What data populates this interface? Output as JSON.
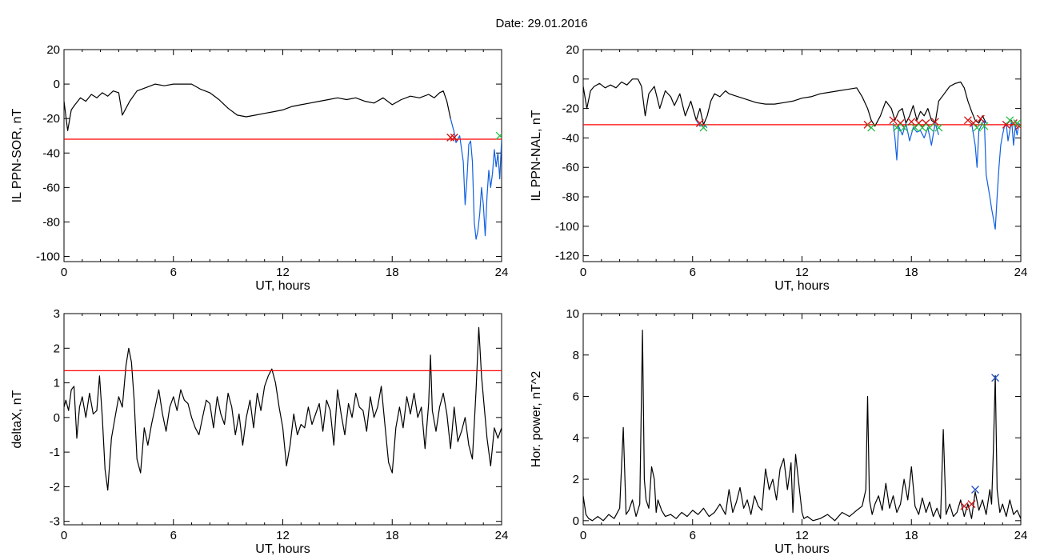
{
  "title": "Date:  29.01.2016",
  "colors": {
    "series": "#000000",
    "threshold": "#ff0000",
    "highlight": "#1060e0",
    "marker_red": "#d01010",
    "marker_green": "#20c040",
    "marker_blue": "#2050c0"
  },
  "chart_data": [
    {
      "type": "line",
      "xlabel": "UT, hours",
      "ylabel": "IL PPN-SOR, nT",
      "xlim": [
        0,
        24
      ],
      "ylim": [
        -103,
        20
      ],
      "xticks": [
        "0",
        "6",
        "12",
        "18",
        "24"
      ],
      "yticks": [
        "20",
        "0",
        "-20",
        "-40",
        "-60",
        "-80",
        "-100"
      ],
      "threshold": -32,
      "series": [
        {
          "x": [
            0,
            0.2,
            0.4,
            0.6,
            0.9,
            1.2,
            1.5,
            1.8,
            2.1,
            2.4,
            2.7,
            3.0,
            3.2,
            3.4,
            3.6,
            4.0,
            4.5,
            5.0,
            5.5,
            6.0,
            6.5,
            7.0,
            7.5,
            8.0,
            8.5,
            9.0,
            9.5,
            10.0,
            10.5,
            11.0,
            11.5,
            12.0,
            12.5,
            13.0,
            13.5,
            14.0,
            14.5,
            15.0,
            15.5,
            16.0,
            16.5,
            17.0,
            17.5,
            18.0,
            18.5,
            19.0,
            19.5,
            20.0,
            20.3,
            20.6,
            20.8,
            21.0,
            21.2
          ],
          "values": [
            -10,
            -27,
            -15,
            -12,
            -8,
            -10,
            -6,
            -8,
            -5,
            -7,
            -4,
            -5,
            -18,
            -14,
            -10,
            -4,
            -2,
            0,
            -1,
            0,
            0,
            0,
            -3,
            -5,
            -9,
            -14,
            -18,
            -19,
            -18,
            -17,
            -16,
            -15,
            -13,
            -12,
            -11,
            -10,
            -9,
            -8,
            -9,
            -8,
            -10,
            -11,
            -8,
            -12,
            -9,
            -7,
            -8,
            -6,
            -8,
            -5,
            -4,
            -10,
            -20
          ]
        },
        {
          "x": [
            21.2,
            21.4,
            21.5,
            21.7,
            21.9,
            22.0,
            22.1,
            22.2,
            22.3,
            22.4,
            22.5,
            22.6,
            22.7,
            22.8,
            22.9,
            23.0,
            23.1,
            23.2,
            23.3,
            23.4,
            23.5,
            23.6,
            23.7,
            23.8,
            23.9,
            24.0
          ],
          "values": [
            -20,
            -28,
            -34,
            -30,
            -45,
            -70,
            -55,
            -35,
            -33,
            -45,
            -80,
            -90,
            -85,
            -75,
            -60,
            -70,
            -88,
            -65,
            -50,
            -60,
            -52,
            -38,
            -48,
            -40,
            -55,
            -32
          ]
        }
      ],
      "markers": {
        "red": {
          "x": [
            21.2,
            21.4
          ],
          "values": [
            -31,
            -31
          ]
        },
        "green": {
          "x": [
            23.9
          ],
          "values": [
            -30
          ]
        }
      }
    },
    {
      "type": "line",
      "xlabel": "UT, hours",
      "ylabel": "IL PPN-NAL, nT",
      "xlim": [
        0,
        24
      ],
      "ylim": [
        -124,
        20
      ],
      "xticks": [
        "0",
        "6",
        "12",
        "18",
        "24"
      ],
      "yticks": [
        "20",
        "0",
        "-20",
        "-40",
        "-60",
        "-80",
        "-100",
        "-120"
      ],
      "threshold": -31,
      "series": [
        {
          "x": [
            0,
            0.2,
            0.4,
            0.6,
            0.9,
            1.2,
            1.5,
            1.8,
            2.1,
            2.4,
            2.7,
            3.0,
            3.2,
            3.4,
            3.6,
            3.9,
            4.2,
            4.5,
            4.8,
            5.0,
            5.3,
            5.6,
            5.9,
            6.2,
            6.4,
            6.6,
            6.8,
            7.0,
            7.2,
            7.5,
            7.8,
            8.0,
            8.5,
            9.0,
            9.5,
            10.0,
            10.5,
            11.0,
            11.5,
            12.0,
            12.5,
            13.0,
            13.5,
            14.0,
            14.5,
            15.0,
            15.3,
            15.6,
            15.8,
            16.0,
            16.3,
            16.6,
            16.9,
            17.1,
            17.3,
            17.5,
            17.7,
            17.9,
            18.1,
            18.3,
            18.5,
            18.7,
            18.9,
            19.1,
            19.3,
            19.5,
            19.8,
            20.1,
            20.4,
            20.7,
            20.9,
            21.1,
            21.3,
            21.5,
            21.7,
            21.9,
            22.1
          ],
          "values": [
            -5,
            -20,
            -8,
            -5,
            -3,
            -6,
            -4,
            -6,
            -2,
            -4,
            0,
            0,
            -5,
            -25,
            -10,
            -5,
            -20,
            -8,
            -12,
            -18,
            -10,
            -25,
            -15,
            -28,
            -20,
            -31,
            -25,
            -15,
            -10,
            -12,
            -8,
            -10,
            -12,
            -14,
            -16,
            -17,
            -17,
            -16,
            -15,
            -13,
            -12,
            -10,
            -9,
            -8,
            -7,
            -6,
            -12,
            -20,
            -28,
            -32,
            -25,
            -15,
            -20,
            -28,
            -22,
            -20,
            -30,
            -25,
            -18,
            -28,
            -22,
            -25,
            -20,
            -28,
            -30,
            -15,
            -10,
            -5,
            -3,
            -2,
            -6,
            -15,
            -22,
            -28,
            -30,
            -25,
            -30
          ]
        },
        {
          "x": [
            6.2,
            6.4,
            6.6,
            6.8
          ],
          "values": [
            -28,
            -32,
            -31,
            -33
          ]
        },
        {
          "x": [
            17.0,
            17.1,
            17.2,
            17.3,
            17.5,
            17.7,
            17.9,
            18.1,
            18.3,
            18.5,
            18.7,
            18.9,
            19.1,
            19.3,
            19.5
          ],
          "values": [
            -30,
            -40,
            -55,
            -32,
            -38,
            -30,
            -42,
            -33,
            -36,
            -35,
            -40,
            -33,
            -45,
            -30,
            -38
          ]
        },
        {
          "x": [
            21.3,
            21.5,
            21.6,
            21.7,
            21.9,
            22.0,
            22.1,
            22.3,
            22.4,
            22.5,
            22.6,
            22.7,
            22.8,
            22.9,
            23.0,
            23.1,
            23.2,
            23.3,
            23.4,
            23.5,
            23.6,
            23.7,
            23.8,
            23.9,
            24.0
          ],
          "values": [
            -30,
            -45,
            -60,
            -35,
            -30,
            -28,
            -65,
            -80,
            -88,
            -95,
            -102,
            -80,
            -60,
            -45,
            -38,
            -32,
            -30,
            -42,
            -35,
            -28,
            -45,
            -32,
            -38,
            -30,
            -33
          ]
        }
      ],
      "markers": {
        "red": {
          "x": [
            6.4,
            15.6,
            17.0,
            17.4,
            18.0,
            18.4,
            18.8,
            19.3,
            21.1,
            21.4,
            21.8,
            23.2,
            23.6,
            23.9
          ],
          "values": [
            -30,
            -31,
            -28,
            -30,
            -29,
            -30,
            -30,
            -29,
            -28,
            -30,
            -27,
            -31,
            -30,
            -32
          ]
        },
        "green": {
          "x": [
            6.6,
            15.8,
            17.2,
            17.6,
            18.2,
            18.6,
            19.0,
            19.5,
            21.6,
            22.0,
            23.4,
            23.8
          ],
          "values": [
            -33,
            -33,
            -33,
            -33,
            -33,
            -33,
            -33,
            -33,
            -33,
            -32,
            -28,
            -30
          ]
        }
      }
    },
    {
      "type": "line",
      "xlabel": "UT, hours",
      "ylabel": "deltaX, nT",
      "xlim": [
        0,
        24
      ],
      "ylim": [
        -3.1,
        3
      ],
      "xticks": [
        "0",
        "6",
        "12",
        "18",
        "24"
      ],
      "yticks": [
        "3",
        "2",
        "1",
        "0",
        "-1",
        "-2",
        "-3"
      ],
      "threshold": 1.35,
      "series": [
        {
          "x": [
            0,
            0.1,
            0.25,
            0.4,
            0.55,
            0.7,
            0.85,
            1.0,
            1.2,
            1.4,
            1.6,
            1.8,
            1.95,
            2.1,
            2.25,
            2.4,
            2.6,
            2.8,
            3.0,
            3.2,
            3.4,
            3.55,
            3.7,
            3.85,
            4.0,
            4.2,
            4.4,
            4.6,
            4.8,
            5.0,
            5.2,
            5.4,
            5.6,
            5.8,
            6.0,
            6.2,
            6.4,
            6.6,
            6.8,
            7.0,
            7.2,
            7.4,
            7.6,
            7.8,
            8.0,
            8.2,
            8.4,
            8.6,
            8.8,
            9.0,
            9.2,
            9.4,
            9.6,
            9.8,
            10.0,
            10.2,
            10.4,
            10.6,
            10.8,
            11.0,
            11.2,
            11.4,
            11.6,
            11.8,
            12.0,
            12.2,
            12.4,
            12.6,
            12.8,
            13.0,
            13.2,
            13.4,
            13.6,
            13.8,
            14.0,
            14.2,
            14.4,
            14.6,
            14.8,
            15.0,
            15.2,
            15.4,
            15.6,
            15.8,
            16.0,
            16.2,
            16.4,
            16.6,
            16.8,
            17.0,
            17.2,
            17.4,
            17.6,
            17.8,
            18.0,
            18.2,
            18.4,
            18.6,
            18.8,
            19.0,
            19.2,
            19.4,
            19.6,
            19.8,
            20.0,
            20.1,
            20.2,
            20.4,
            20.6,
            20.8,
            21.0,
            21.2,
            21.4,
            21.6,
            21.8,
            22.0,
            22.2,
            22.4,
            22.6,
            22.75,
            22.9,
            23.05,
            23.2,
            23.4,
            23.6,
            23.8,
            24.0
          ],
          "values": [
            0.3,
            0.5,
            0.2,
            0.8,
            0.9,
            -0.6,
            0.3,
            0.6,
            0.0,
            0.7,
            0.1,
            0.2,
            1.2,
            0.0,
            -1.5,
            -2.1,
            -0.6,
            0.0,
            0.6,
            0.3,
            1.5,
            2.0,
            1.6,
            0.5,
            -1.2,
            -1.6,
            -0.3,
            -0.8,
            -0.2,
            0.3,
            0.8,
            0.1,
            -0.4,
            0.3,
            0.6,
            0.2,
            0.8,
            0.5,
            0.4,
            0.0,
            -0.3,
            -0.5,
            0.0,
            0.5,
            0.4,
            -0.3,
            0.6,
            0.1,
            -0.2,
            0.7,
            0.3,
            -0.5,
            0.1,
            -0.8,
            0.0,
            0.5,
            -0.3,
            0.7,
            0.2,
            0.9,
            1.2,
            1.4,
            1.0,
            0.3,
            -0.3,
            -1.4,
            -0.8,
            0.1,
            -0.5,
            -0.2,
            -0.3,
            0.3,
            -0.2,
            0.1,
            0.4,
            -0.4,
            0.5,
            0.2,
            -0.8,
            0.8,
            0.1,
            -0.5,
            0.4,
            0.0,
            0.7,
            0.3,
            0.2,
            -0.4,
            0.6,
            0.0,
            0.3,
            0.9,
            -0.2,
            -1.3,
            -1.6,
            -0.3,
            0.3,
            -0.3,
            0.6,
            0.1,
            0.7,
            0.0,
            0.3,
            -0.9,
            0.4,
            1.8,
            0.2,
            -0.4,
            0.3,
            0.7,
            0.1,
            -0.9,
            0.3,
            -0.7,
            -0.4,
            0.0,
            -0.8,
            -1.2,
            0.8,
            2.6,
            1.2,
            0.3,
            -0.6,
            -1.4,
            -0.3,
            -0.6,
            -0.3
          ]
        }
      ]
    },
    {
      "type": "line",
      "xlabel": "UT, hours",
      "ylabel": "Hor. power, nT^2",
      "xlim": [
        0,
        24
      ],
      "ylim": [
        -0.2,
        10
      ],
      "xticks": [
        "0",
        "6",
        "12",
        "18",
        "24"
      ],
      "yticks": [
        "10",
        "8",
        "6",
        "4",
        "2",
        "0"
      ],
      "series": [
        {
          "x": [
            0,
            0.15,
            0.3,
            0.5,
            0.8,
            1.1,
            1.4,
            1.7,
            2.0,
            2.2,
            2.35,
            2.5,
            2.7,
            2.9,
            3.1,
            3.25,
            3.35,
            3.45,
            3.6,
            3.75,
            3.9,
            4.0,
            4.1,
            4.3,
            4.5,
            4.8,
            5.1,
            5.4,
            5.7,
            6.0,
            6.3,
            6.6,
            6.9,
            7.2,
            7.5,
            7.8,
            8.0,
            8.2,
            8.4,
            8.6,
            8.8,
            9.0,
            9.2,
            9.4,
            9.6,
            9.8,
            10.0,
            10.2,
            10.4,
            10.6,
            10.8,
            11.0,
            11.2,
            11.4,
            11.5,
            11.65,
            11.8,
            12.0,
            12.1,
            12.3,
            12.6,
            13.0,
            13.4,
            13.8,
            14.2,
            14.6,
            15.0,
            15.3,
            15.5,
            15.6,
            15.7,
            15.85,
            16.0,
            16.2,
            16.4,
            16.6,
            16.8,
            17.0,
            17.2,
            17.4,
            17.6,
            17.8,
            18.0,
            18.2,
            18.4,
            18.6,
            18.8,
            19.0,
            19.2,
            19.4,
            19.6,
            19.75,
            19.9,
            20.1,
            20.3,
            20.5,
            20.7,
            20.9,
            21.1,
            21.3,
            21.5,
            21.7,
            21.9,
            22.1,
            22.3,
            22.4,
            22.5,
            22.6,
            22.7,
            22.85,
            23.0,
            23.2,
            23.4,
            23.6,
            23.8,
            24.0
          ],
          "values": [
            1.2,
            0.3,
            0.1,
            0.0,
            0.2,
            0.0,
            0.3,
            0.1,
            0.6,
            4.5,
            0.3,
            0.5,
            1.0,
            0.2,
            0.8,
            9.2,
            2.0,
            1.0,
            0.6,
            2.6,
            2.0,
            0.4,
            1.0,
            0.5,
            0.2,
            0.3,
            0.1,
            0.4,
            0.2,
            0.5,
            0.3,
            0.6,
            0.2,
            0.4,
            0.8,
            0.3,
            1.5,
            0.4,
            0.9,
            1.6,
            0.6,
            1.0,
            0.3,
            1.2,
            0.7,
            0.5,
            2.5,
            1.5,
            2.0,
            1.0,
            2.5,
            3.0,
            1.5,
            2.8,
            0.4,
            3.2,
            2.0,
            0.4,
            0.1,
            0.2,
            0.0,
            0.1,
            0.3,
            0.0,
            0.4,
            0.2,
            0.5,
            0.7,
            1.5,
            6.0,
            1.0,
            0.3,
            0.8,
            1.2,
            0.5,
            1.8,
            0.6,
            1.2,
            0.4,
            0.8,
            2.0,
            1.0,
            2.6,
            0.7,
            0.3,
            1.1,
            0.4,
            0.9,
            0.2,
            0.6,
            0.1,
            4.4,
            0.3,
            0.8,
            0.2,
            0.4,
            1.0,
            0.2,
            0.8,
            0.1,
            1.4,
            0.5,
            1.0,
            0.3,
            1.5,
            0.8,
            3.5,
            7.0,
            1.5,
            0.4,
            0.8,
            0.2,
            1.0,
            0.3,
            0.5,
            0.1
          ]
        }
      ],
      "markers": {
        "red": {
          "x": [
            20.9,
            21.3
          ],
          "values": [
            0.7,
            0.8
          ]
        },
        "blue": {
          "x": [
            22.6,
            21.5
          ],
          "values": [
            6.9,
            1.5
          ]
        }
      }
    }
  ]
}
